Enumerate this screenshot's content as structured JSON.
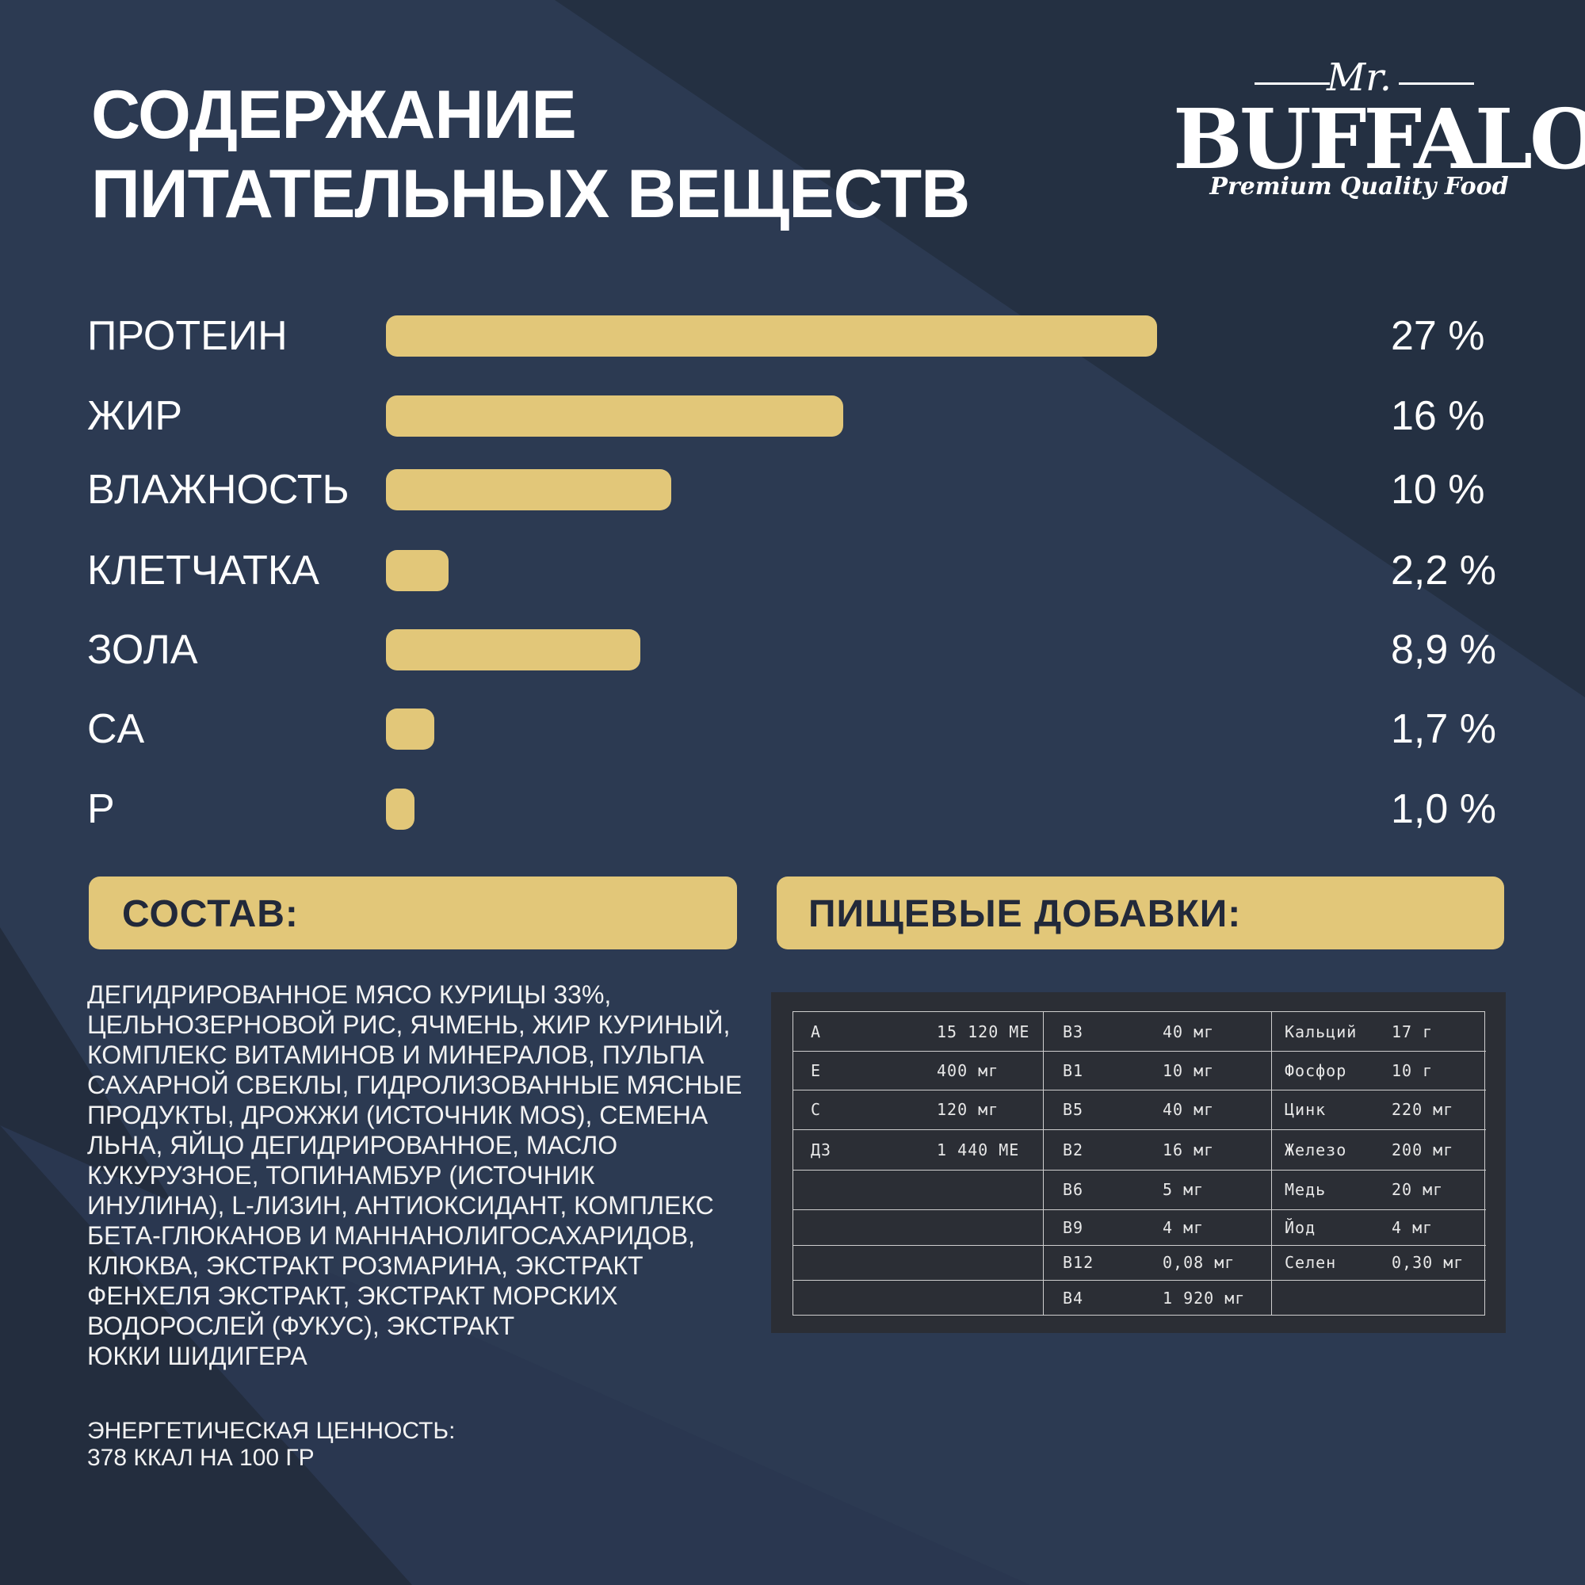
{
  "title": [
    "СОДЕРЖАНИЕ",
    "ПИТАТЕЛЬНЫХ ВЕЩЕСТВ"
  ],
  "logo": {
    "prefix": "Mr.",
    "brand": "BUFFALO",
    "tagline": "Premium Quality Food"
  },
  "colors": {
    "accent": "#e2c779",
    "background": "#2c3a52",
    "table_bg": "#2b2e35",
    "text": "#ffffff",
    "header_text": "#22293a"
  },
  "chart_data": {
    "type": "bar",
    "orientation": "horizontal",
    "title": "СОДЕРЖАНИЕ ПИТАТЕЛЬНЫХ ВЕЩЕСТВ",
    "categories": [
      "ПРОТЕИН",
      "ЖИР",
      "ВЛАЖНОСТЬ",
      "КЛЕТЧАТКА",
      "ЗОЛА",
      "CA",
      "P"
    ],
    "values": [
      27,
      16,
      10,
      2.2,
      8.9,
      1.7,
      1.0
    ],
    "value_labels": [
      "27 %",
      "16 %",
      "10 %",
      "2,2 %",
      "8,9 %",
      "1,7 %",
      "1,0 %"
    ],
    "unit": "%",
    "xlabel": "",
    "ylabel": "",
    "xlim": [
      0,
      27
    ]
  },
  "composition": {
    "header": "СОСТАВ:",
    "lines": [
      "ДЕГИДРИРОВАННОЕ МЯСО КУРИЦЫ 33%,",
      "ЦЕЛЬНОЗЕРНОВОЙ РИС, ЯЧМЕНЬ, ЖИР КУРИНЫЙ,",
      "КОМПЛЕКС ВИТАМИНОВ И МИНЕРАЛОВ, ПУЛЬПА",
      "САХАРНОЙ СВЕКЛЫ, ГИДРОЛИЗОВАННЫЕ МЯСНЫЕ",
      "ПРОДУКТЫ, ДРОЖЖИ (ИСТОЧНИК MOS), СЕМЕНА",
      "ЛЬНА, ЯЙЦО ДЕГИДРИРОВАННОЕ, МАСЛО",
      "КУКУРУЗНОЕ, ТОПИНАМБУР (ИСТОЧНИК",
      "ИНУЛИНА), L-ЛИЗИН, АНТИОКСИДАНТ, КОМПЛЕКС",
      "БЕТА-ГЛЮКАНОВ И МАННАНОЛИГОСАХАРИДОВ,",
      "КЛЮКВА, ЭКСТРАКТ РОЗМАРИНА, ЭКСТРАКТ",
      "ФЕНХЕЛЯ ЭКСТРАКТ, ЭКСТРАКТ МОРСКИХ",
      "ВОДОРОСЛЕЙ (ФУКУС), ЭКСТРАКТ",
      "ЮККИ ШИДИГЕРА"
    ],
    "energy": [
      "ЭНЕРГЕТИЧЕСКАЯ ЦЕННОСТЬ:",
      "378 ККАЛ НА 100 ГР"
    ]
  },
  "additives": {
    "header": "ПИЩЕВЫЕ ДОБАВКИ:",
    "rows": [
      [
        "A",
        "15 120 МЕ",
        "B3",
        "40 мг",
        "Кальций",
        "17 г"
      ],
      [
        "E",
        "400 мг",
        "B1",
        "10 мг",
        "Фосфор",
        "10 г"
      ],
      [
        "C",
        "120 мг",
        "B5",
        "40 мг",
        "Цинк",
        "220 мг"
      ],
      [
        "Д3",
        "1 440 МЕ",
        "B2",
        "16 мг",
        "Железо",
        "200 мг"
      ],
      [
        "",
        "",
        "B6",
        "5 мг",
        "Медь",
        "20 мг"
      ],
      [
        "",
        "",
        "B9",
        "4 мг",
        "Йод",
        "4 мг"
      ],
      [
        "",
        "",
        "B12",
        "0,08 мг",
        "Селен",
        "0,30 мг"
      ],
      [
        "",
        "",
        "B4",
        "1 920 мг",
        "",
        ""
      ]
    ]
  }
}
